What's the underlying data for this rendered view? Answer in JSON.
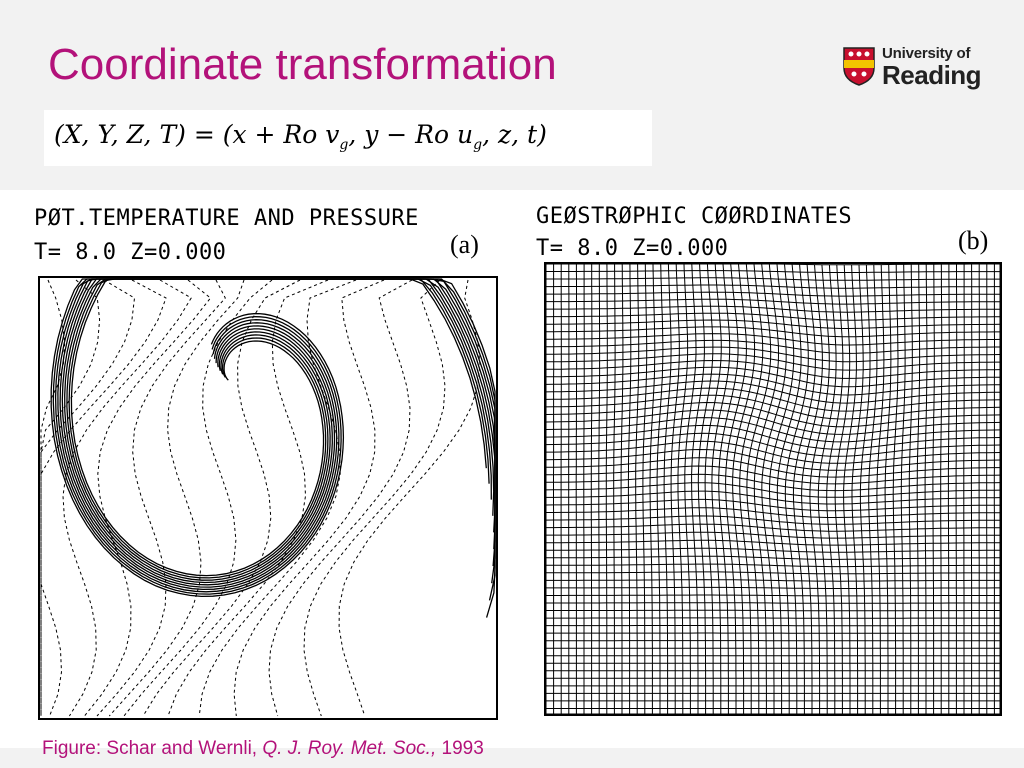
{
  "slide": {
    "title": "Coordinate transformation",
    "title_color": "#b3127a"
  },
  "logo": {
    "line1": "University of",
    "line2": "Reading"
  },
  "formula": {
    "text_parts": [
      "(X, Y, Z, T) = (x + Ro v",
      "g",
      ", y − Ro u",
      "g",
      ", z, t)"
    ]
  },
  "figure_a": {
    "label_line1": "PØT.TEMPERATURE AND PRESSURE",
    "label_line2": "T= 8.0     Z=0.000",
    "tag": "(a)"
  },
  "figure_b": {
    "label_line1": "GEØSTRØPHIC CØØRDINATES",
    "label_line2": "T= 8.0     Z=0.000",
    "tag": "(b)"
  },
  "caption": {
    "prefix": "Figure: Schar and Wernli, ",
    "journal": "Q. J. Roy. Met. Soc.,",
    "year": " 1993"
  }
}
